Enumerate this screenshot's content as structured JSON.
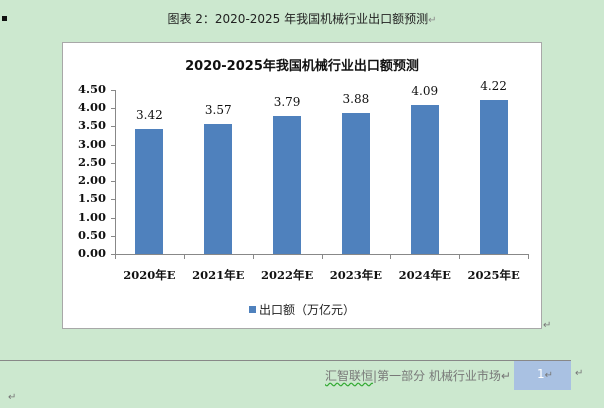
{
  "caption": {
    "text": "图表 2：2020-2025 年我国机械行业出口额预测",
    "mark": "↵"
  },
  "chart_data": {
    "type": "bar",
    "title": "2020-2025年我国机械行业出口额预测",
    "categories": [
      "2020年E",
      "2021年E",
      "2022年E",
      "2023年E",
      "2024年E",
      "2025年E"
    ],
    "series": [
      {
        "name": "出口额（万亿元）",
        "values": [
          3.42,
          3.57,
          3.79,
          3.88,
          4.09,
          4.22
        ],
        "color": "#4f81bd"
      }
    ],
    "data_labels": [
      "3.42",
      "3.57",
      "3.79",
      "3.88",
      "4.09",
      "4.22"
    ],
    "yticks": [
      "0.00",
      "0.50",
      "1.00",
      "1.50",
      "2.00",
      "2.50",
      "3.00",
      "3.50",
      "4.00",
      "4.50"
    ],
    "ylim": [
      0,
      4.5
    ],
    "xlabel": "",
    "ylabel": "",
    "grid": false,
    "legend_position": "bottom"
  },
  "legend": {
    "label": "出口额（万亿元）"
  },
  "footer": {
    "brand": "汇智联恒",
    "separator": "|",
    "section": "第一部分  机械行业市场",
    "page_number": "1",
    "mark": "↵"
  }
}
